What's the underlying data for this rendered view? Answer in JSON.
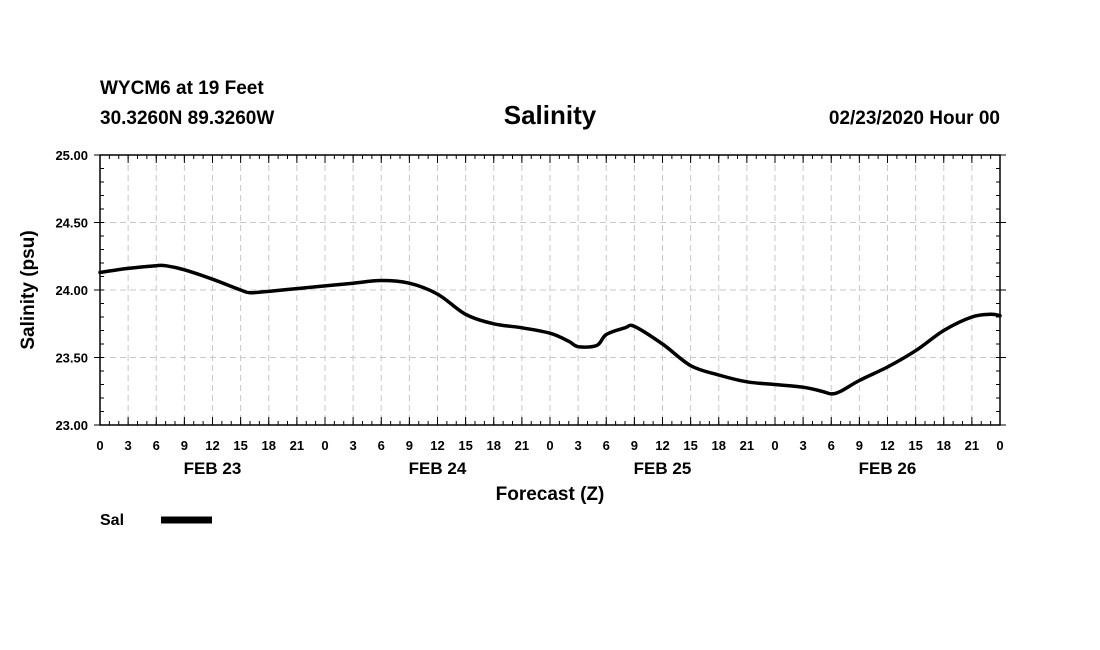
{
  "header": {
    "station": "WYCM6 at 19 Feet",
    "location": "30.3260N 89.3260W",
    "run": "02/23/2020 Hour 00"
  },
  "chart_data": {
    "type": "line",
    "title": "Salinity",
    "xlabel": "Forecast (Z)",
    "ylabel": "Salinity (psu)",
    "ylim": [
      23.0,
      25.0
    ],
    "yticks": [
      "23.00",
      "23.50",
      "24.00",
      "24.50",
      "25.00"
    ],
    "xlim": [
      0,
      96
    ],
    "x_tick_labels": [
      "0",
      "3",
      "6",
      "9",
      "12",
      "15",
      "18",
      "21",
      "0",
      "3",
      "6",
      "9",
      "12",
      "15",
      "18",
      "21",
      "0",
      "3",
      "6",
      "9",
      "12",
      "15",
      "18",
      "21",
      "0",
      "3",
      "6",
      "9",
      "12",
      "15",
      "18",
      "21",
      "0"
    ],
    "day_labels": [
      {
        "label": "FEB 23",
        "hour": 12
      },
      {
        "label": "FEB 24",
        "hour": 36
      },
      {
        "label": "FEB 25",
        "hour": 60
      },
      {
        "label": "FEB 26",
        "hour": 84
      }
    ],
    "grid": true,
    "legend": "bottom-left",
    "series": [
      {
        "name": "Sal",
        "color": "#000000",
        "x": [
          0,
          3,
          6,
          7,
          9,
          12,
          15,
          16,
          18,
          21,
          24,
          27,
          30,
          33,
          36,
          39,
          42,
          45,
          48,
          50,
          51,
          53,
          54,
          56,
          57,
          60,
          63,
          66,
          69,
          72,
          75,
          77,
          78,
          79,
          81,
          84,
          87,
          90,
          93,
          95,
          96
        ],
        "values": [
          24.13,
          24.16,
          24.18,
          24.18,
          24.15,
          24.08,
          24.0,
          23.98,
          23.99,
          24.01,
          24.03,
          24.05,
          24.07,
          24.05,
          23.97,
          23.82,
          23.75,
          23.72,
          23.68,
          23.62,
          23.58,
          23.59,
          23.67,
          23.72,
          23.73,
          23.6,
          23.44,
          23.37,
          23.32,
          23.3,
          23.28,
          23.25,
          23.23,
          23.25,
          23.33,
          23.43,
          23.55,
          23.7,
          23.8,
          23.82,
          23.81
        ]
      }
    ]
  }
}
